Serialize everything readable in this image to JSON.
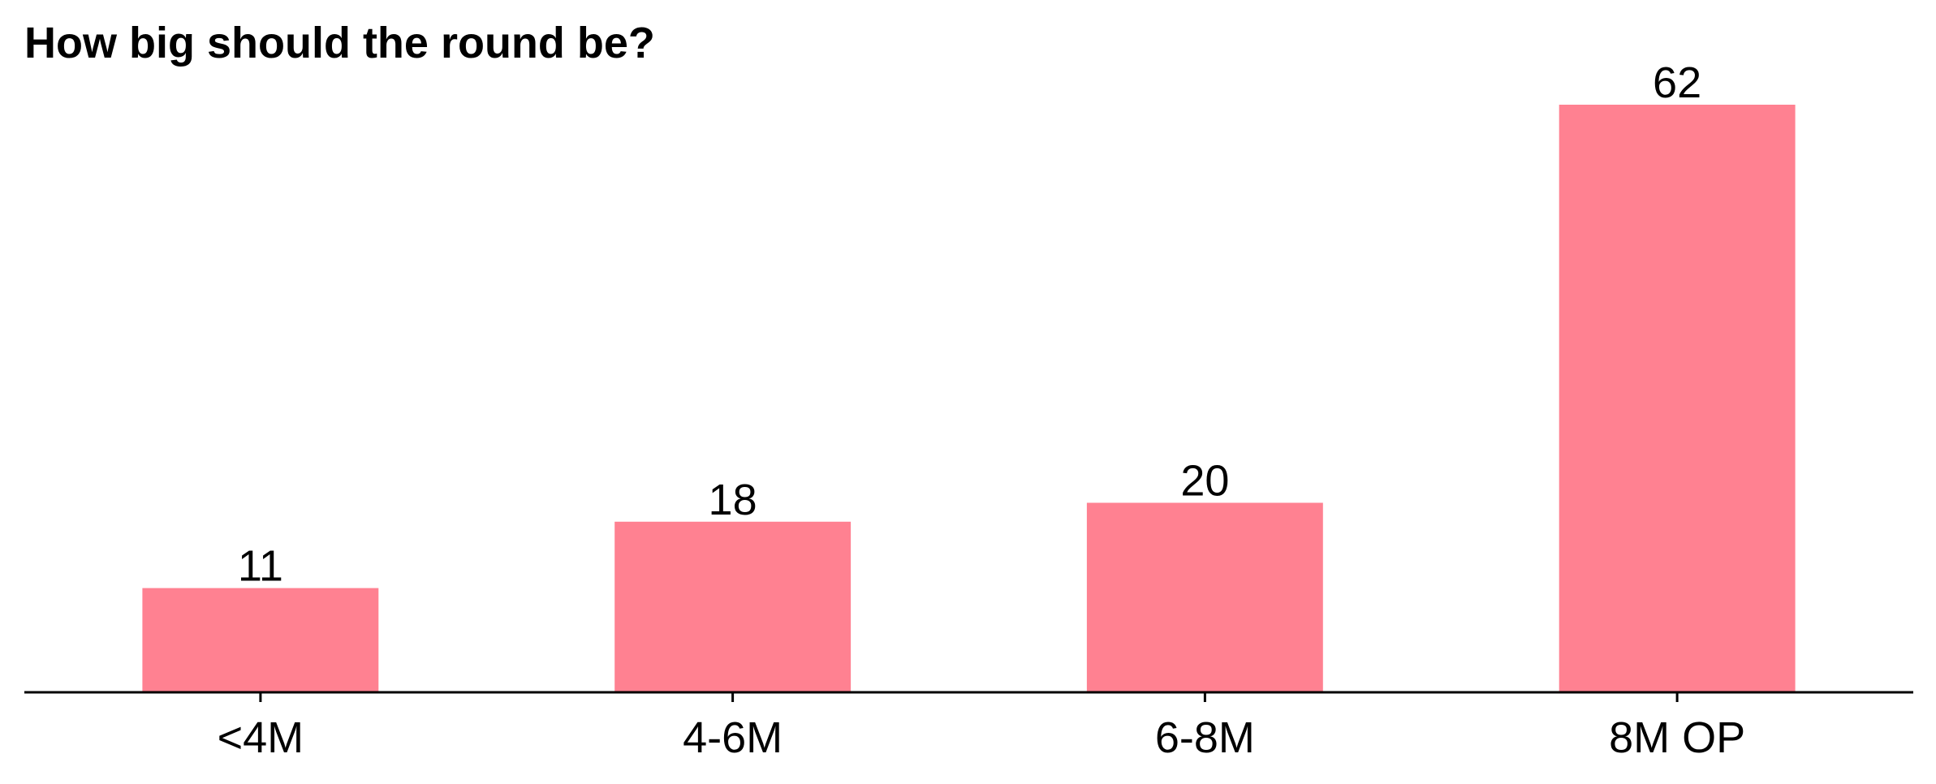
{
  "chart_data": {
    "type": "bar",
    "title": "How big should the round be?",
    "xlabel": "",
    "ylabel": "",
    "categories": [
      "<4M",
      "4-6M",
      "6-8M",
      "8M OP"
    ],
    "values": [
      11,
      18,
      20,
      62
    ],
    "data_labels": [
      "11",
      "18",
      "20",
      "62"
    ],
    "ylim": [
      0,
      65
    ],
    "bar_color": "#ff8191",
    "grid": false,
    "legend": "none",
    "y_axis_visible": false
  }
}
